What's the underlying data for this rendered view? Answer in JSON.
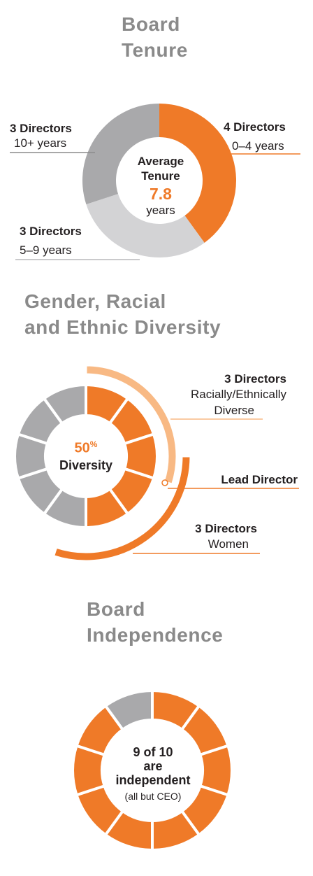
{
  "colors": {
    "orange": "#ef7a28",
    "light_orange": "#f8b984",
    "gray": "#a9a9ab",
    "light_gray": "#d3d3d5"
  },
  "sections": {
    "tenure_title": [
      "Board",
      "Tenure"
    ],
    "diversity_title": [
      "Gender, Racial",
      "and Ethnic Diversity"
    ],
    "independence_title": [
      "Board",
      "Independence"
    ]
  },
  "chart_data": [
    {
      "type": "pie",
      "variant": "donut",
      "title": "Board Tenure",
      "slices": [
        {
          "label": "4 Directors",
          "sublabel": "0–4 years",
          "value": 4,
          "color": "#ef7a28"
        },
        {
          "label": "3 Directors",
          "sublabel": "5–9 years",
          "value": 3,
          "color": "#d3d3d5"
        },
        {
          "label": "3 Directors",
          "sublabel": "10+ years",
          "value": 3,
          "color": "#a9a9ab"
        }
      ],
      "center": {
        "line1": "Average",
        "line2": "Tenure",
        "value": "7.8",
        "unit": "years"
      }
    },
    {
      "type": "pie",
      "variant": "segmented-donut",
      "title": "Gender, Racial and Ethnic Diversity",
      "segments": 10,
      "highlighted": 5,
      "center": {
        "value": "50",
        "pct": "%",
        "label": "Diversity"
      },
      "annotations": [
        {
          "label": "3 Directors",
          "sublabel_1": "Racially/Ethnically",
          "sublabel_2": "Diverse",
          "count": 3
        },
        {
          "label": "Lead Director"
        },
        {
          "label": "3 Directors",
          "sublabel": "Women",
          "count": 3
        }
      ]
    },
    {
      "type": "pie",
      "variant": "segmented-donut",
      "title": "Board Independence",
      "segments": 10,
      "independent": 9,
      "center": {
        "line1": "9 of 10",
        "line2": "are",
        "line3": "independent",
        "line4": "(all but CEO)"
      }
    }
  ]
}
